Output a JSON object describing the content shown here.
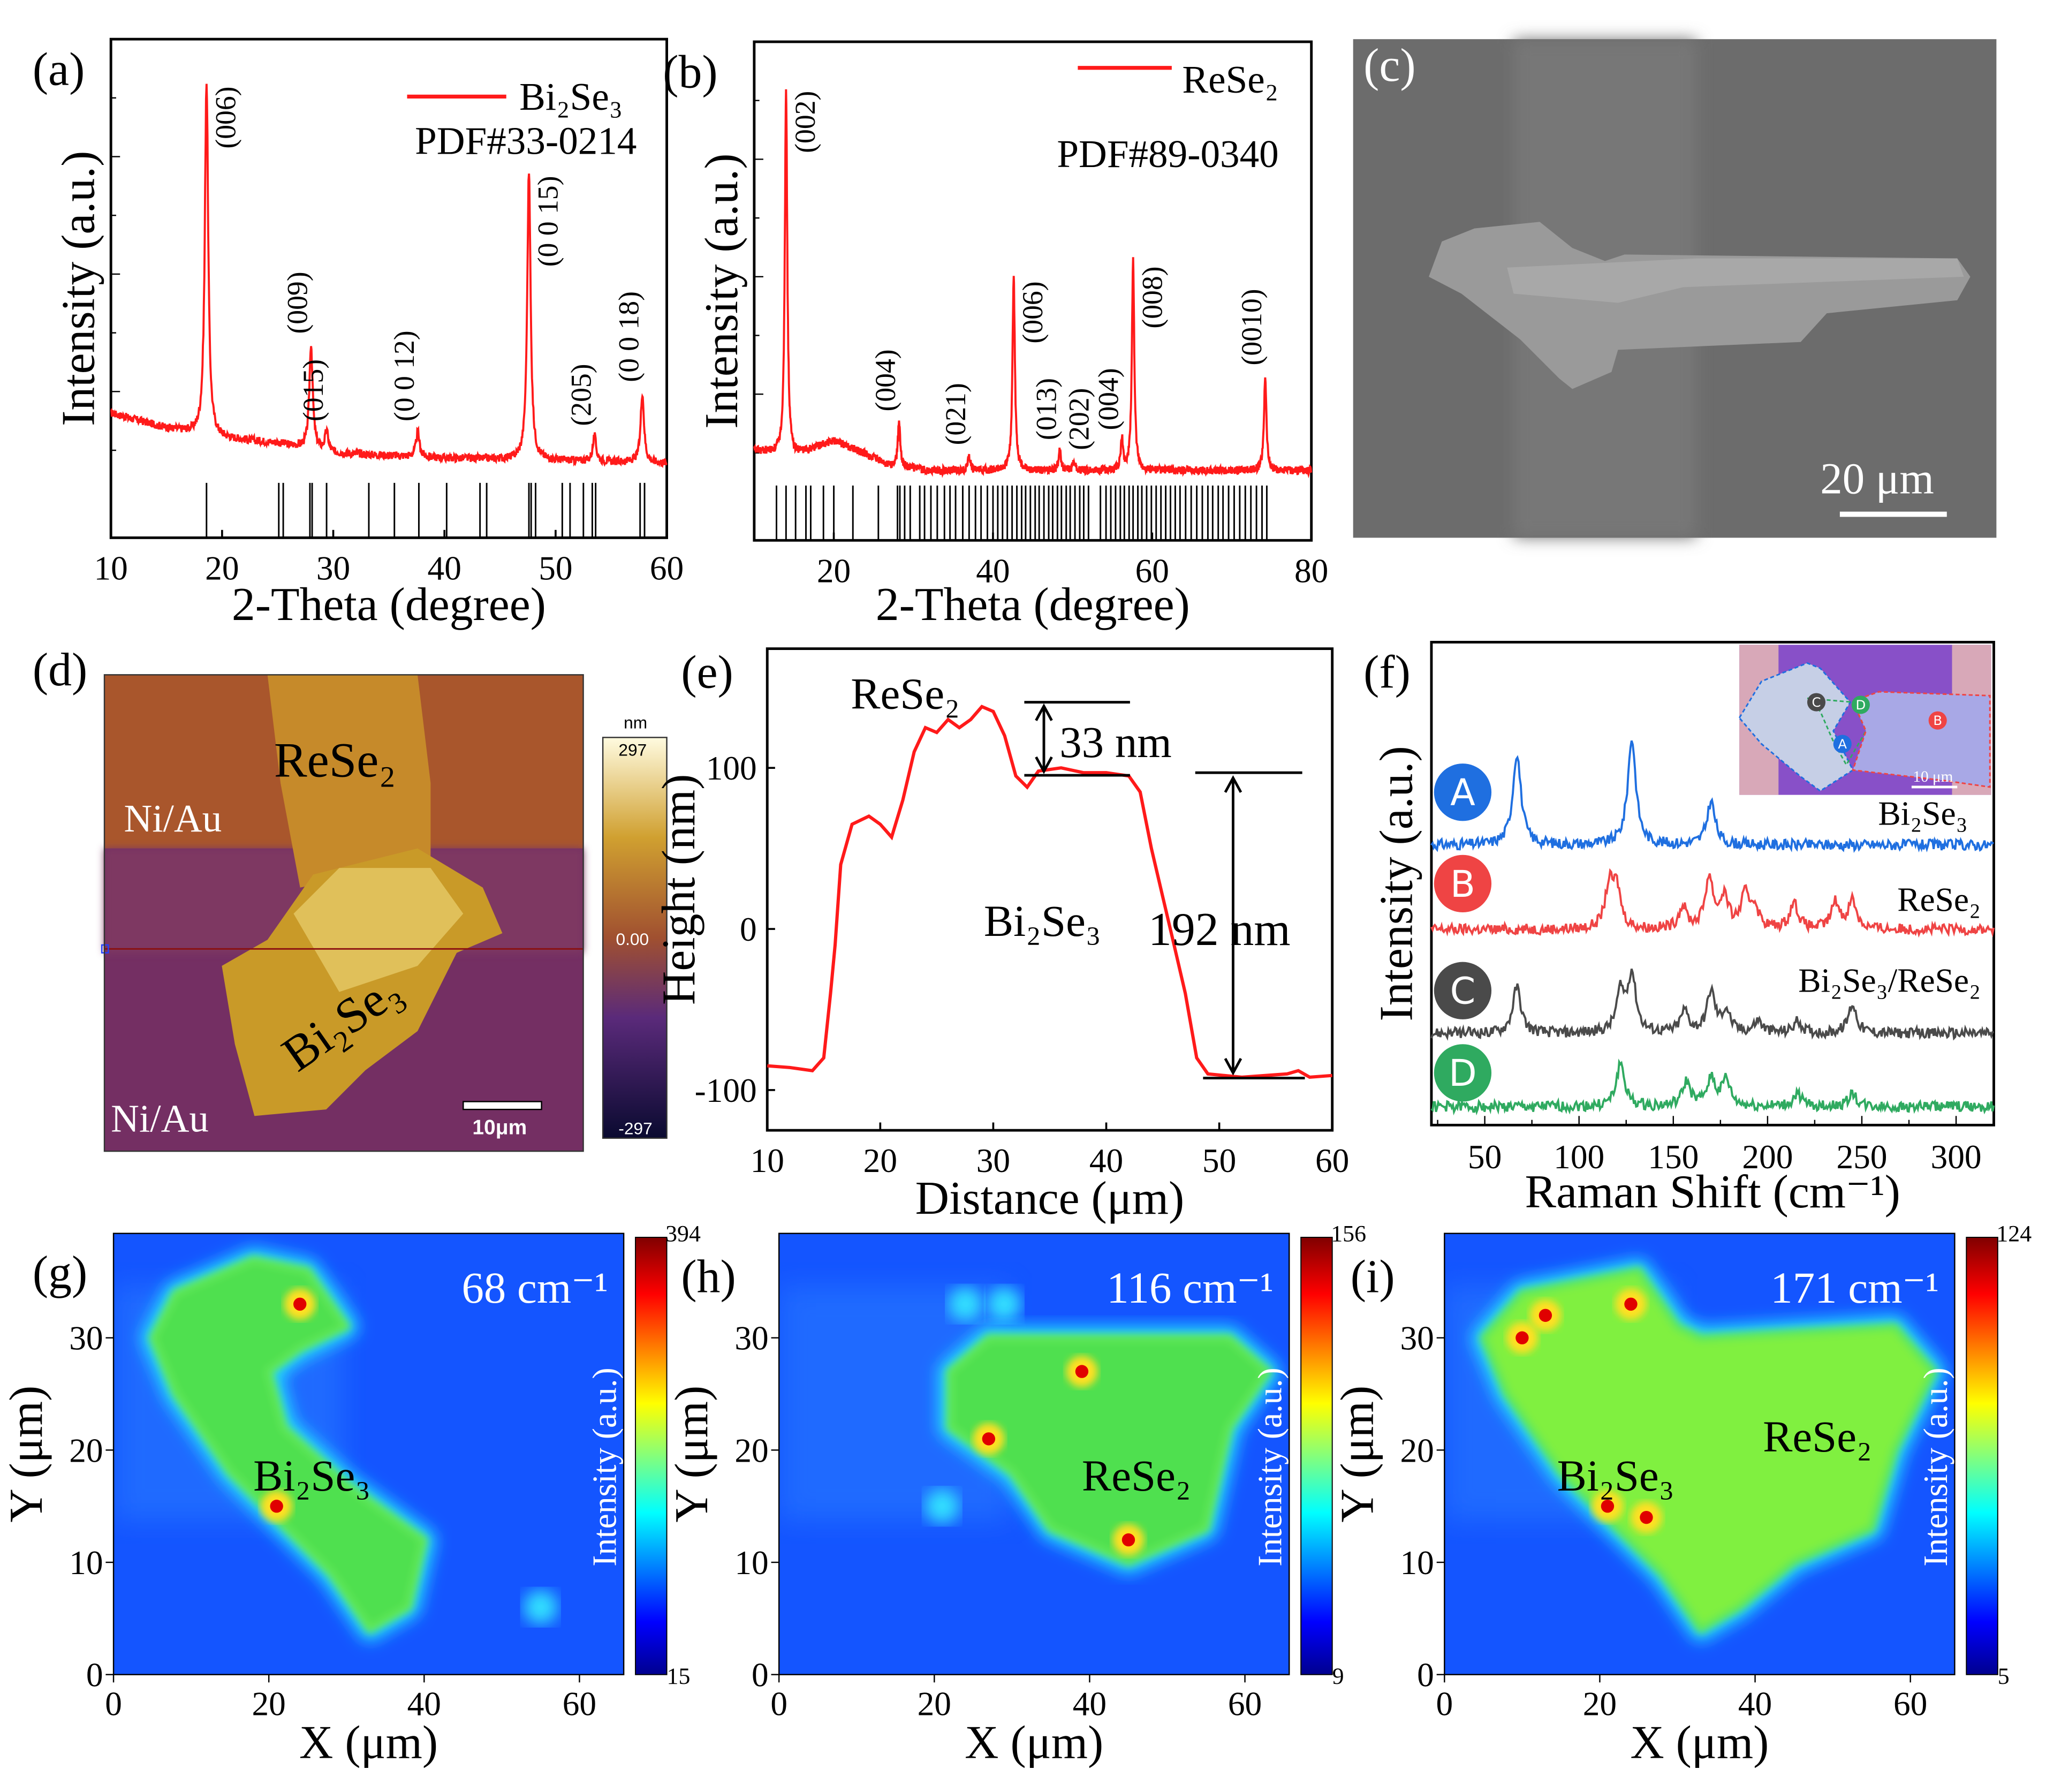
{
  "panel_labels": {
    "a": "(a)",
    "b": "(b)",
    "c": "(c)",
    "d": "(d)",
    "e": "(e)",
    "f": "(f)",
    "g": "(g)",
    "h": "(h)",
    "i": "(i)"
  },
  "colors": {
    "xrd": "#ff1a1a",
    "ref": "#000000",
    "raman_A": "#1f6fe0",
    "raman_B": "#ef4444",
    "raman_C": "#4a4a4a",
    "raman_D": "#2faa60",
    "height": "#ff1a1a"
  },
  "sem": {
    "scale_bar": "20 μm"
  },
  "afm": {
    "label_rese2": "ReSe₂",
    "label_niau_top": "Ni/Au",
    "label_niau_bottom": "Ni/Au",
    "label_bi2se3": "Bi₂Se₃",
    "scale_bar": "10μm",
    "colorbar": {
      "unit": "nm",
      "max": "297",
      "mid": "0.00",
      "min": "-297"
    }
  },
  "chart_data": [
    {
      "id": "a",
      "type": "line",
      "title": "",
      "legend": "Bi₂Se₃",
      "pdf": "PDF#33-0214",
      "xlabel": "2-Theta (degree)",
      "ylabel": "Intensity (a.u.)",
      "xlim": [
        10,
        60
      ],
      "ylim": [
        0,
        100
      ],
      "xticks": [
        10,
        20,
        30,
        40,
        50,
        60
      ],
      "baseline": [
        [
          10,
          25
        ],
        [
          15,
          22
        ],
        [
          20,
          20
        ],
        [
          25,
          19
        ],
        [
          30,
          17
        ],
        [
          40,
          16
        ],
        [
          60,
          15
        ]
      ],
      "peaks": [
        {
          "x": 18.6,
          "h": 71,
          "label": "(006)"
        },
        {
          "x": 28.0,
          "h": 21,
          "label": "(009)"
        },
        {
          "x": 29.4,
          "h": 4,
          "label": "(015)"
        },
        {
          "x": 37.6,
          "h": 5,
          "label": "(0 0 12)"
        },
        {
          "x": 47.6,
          "h": 58,
          "label": "(0 0 15)"
        },
        {
          "x": 53.5,
          "h": 5,
          "label": "(205)"
        },
        {
          "x": 57.8,
          "h": 14,
          "label": "(0 0 18)"
        }
      ],
      "reference_lines": [
        18.6,
        25.1,
        25.5,
        27.9,
        28.1,
        29.4,
        33.2,
        35.5,
        37.7,
        40.2,
        43.2,
        43.8,
        47.6,
        47.8,
        48.2,
        50.6,
        51.3,
        52.5,
        53.3,
        53.6,
        57.6,
        58.0
      ]
    },
    {
      "id": "b",
      "type": "line",
      "legend": "ReSe₂",
      "pdf": "PDF#89-0340",
      "xlabel": "2-Theta (degree)",
      "ylabel": "Intensity (a.u.)",
      "xlim": [
        10,
        80
      ],
      "ylim": [
        0,
        100
      ],
      "xticks": [
        20,
        40,
        60,
        80
      ],
      "baseline": [
        [
          10,
          18
        ],
        [
          15,
          17
        ],
        [
          20,
          20
        ],
        [
          23,
          18
        ],
        [
          27,
          15
        ],
        [
          32,
          14
        ],
        [
          80,
          14
        ]
      ],
      "peaks": [
        {
          "x": 14.0,
          "h": 74,
          "label": "(002)"
        },
        {
          "x": 28.2,
          "h": 9,
          "label": "(004)"
        },
        {
          "x": 37.0,
          "h": 3,
          "label": "(021)"
        },
        {
          "x": 42.6,
          "h": 39,
          "label": "(006)"
        },
        {
          "x": 48.4,
          "h": 4,
          "label": "(013)"
        },
        {
          "x": 50.2,
          "h": 2,
          "label": "(202)"
        },
        {
          "x": 56.2,
          "h": 6,
          "label": "(004)"
        },
        {
          "x": 57.6,
          "h": 42,
          "label": "(008)"
        },
        {
          "x": 74.2,
          "h": 19,
          "label": "(0010)"
        }
      ],
      "reference_lines": [
        12.8,
        14.0,
        15.2,
        16.5,
        17.1,
        18.7,
        20.0,
        22.4,
        25.6,
        28.0,
        28.3,
        28.9,
        29.6,
        30.8,
        31.4,
        32.2,
        33.0,
        33.9,
        34.6,
        35.3,
        36.2,
        37.0,
        37.8,
        38.5,
        39.3,
        40.0,
        40.6,
        41.2,
        41.8,
        42.4,
        43.0,
        43.6,
        44.1,
        44.7,
        45.3,
        45.8,
        46.4,
        47.0,
        47.5,
        48.1,
        48.6,
        49.2,
        49.7,
        50.3,
        50.9,
        51.4,
        52.0,
        53.5,
        54.2,
        54.8,
        55.4,
        56.0,
        56.5,
        57.1,
        57.6,
        58.2,
        58.7,
        59.3,
        59.9,
        60.5,
        61.1,
        61.7,
        62.3,
        62.9,
        63.5,
        64.2,
        64.9,
        65.6,
        66.3,
        67.0,
        67.6,
        68.3,
        68.9,
        69.6,
        70.3,
        71.0,
        71.7,
        72.4,
        73.1,
        73.8,
        74.4
      ]
    },
    {
      "id": "e",
      "type": "line",
      "xlabel": "Distance (μm)",
      "ylabel": "Height (nm)",
      "xlim": [
        10,
        60
      ],
      "ylim": [
        -125,
        174
      ],
      "xticks": [
        10,
        20,
        30,
        40,
        50,
        60
      ],
      "yticks": [
        -100,
        0,
        100
      ],
      "ytick_labels": [
        "-100",
        "0",
        "100"
      ],
      "labels": {
        "rese2": "ReSe₂",
        "bi2se3": "Bi₂Se₃",
        "step1": "33 nm",
        "step2": "192 nm"
      },
      "points": [
        [
          10,
          -85
        ],
        [
          12,
          -86
        ],
        [
          14,
          -88
        ],
        [
          15,
          -80
        ],
        [
          15.6,
          -40
        ],
        [
          16,
          -10
        ],
        [
          16.5,
          40
        ],
        [
          17.5,
          65
        ],
        [
          19,
          70
        ],
        [
          20,
          65
        ],
        [
          21,
          57
        ],
        [
          22,
          80
        ],
        [
          23,
          110
        ],
        [
          24,
          125
        ],
        [
          25,
          122
        ],
        [
          26,
          130
        ],
        [
          27,
          125
        ],
        [
          28,
          130
        ],
        [
          29,
          138
        ],
        [
          30,
          135
        ],
        [
          31,
          120
        ],
        [
          32,
          95
        ],
        [
          33,
          88
        ],
        [
          34,
          98
        ],
        [
          36,
          100
        ],
        [
          38,
          97
        ],
        [
          40,
          97
        ],
        [
          42,
          95
        ],
        [
          43,
          85
        ],
        [
          44,
          50
        ],
        [
          45,
          20
        ],
        [
          46,
          -10
        ],
        [
          47,
          -40
        ],
        [
          48,
          -80
        ],
        [
          49,
          -90
        ],
        [
          52,
          -92
        ],
        [
          56,
          -90
        ],
        [
          57,
          -88
        ],
        [
          58,
          -92
        ],
        [
          60,
          -91
        ]
      ]
    },
    {
      "id": "f",
      "type": "line",
      "xlabel": "Raman Shift (cm⁻¹)",
      "ylabel": "Intensity (a.u.)",
      "xlim": [
        21.7,
        320
      ],
      "ylim": [
        0,
        100
      ],
      "xticks": [
        50,
        100,
        150,
        200,
        250,
        300
      ],
      "inset_scale_bar": "10 μm",
      "series": [
        {
          "name": "A",
          "label": "Bi₂Se₃",
          "baseline": 58,
          "color": "#1f6fe0",
          "peaks": [
            [
              67,
              19
            ],
            [
              128,
              22
            ],
            [
              170,
              9
            ]
          ]
        },
        {
          "name": "B",
          "label": "ReSe₂",
          "baseline": 40.5,
          "color": "#ef4444",
          "peaks": [
            [
              116,
              8.5
            ],
            [
              120,
              8
            ],
            [
              155,
              4.5
            ],
            [
              169,
              10.5
            ],
            [
              177,
              6.5
            ],
            [
              188,
              6.5
            ],
            [
              193,
              4.5
            ],
            [
              214,
              5.5
            ],
            [
              236,
              5.5
            ],
            [
              245,
              6
            ]
          ]
        },
        {
          "name": "C",
          "label": "Bi₂Se₃/ReSe₂",
          "baseline": 19,
          "color": "#4a4a4a",
          "peaks": [
            [
              67,
              9.6
            ],
            [
              122,
              8
            ],
            [
              128,
              12
            ],
            [
              156,
              4.5
            ],
            [
              170,
              8.5
            ],
            [
              178,
              4.5
            ],
            [
              195,
              2.5
            ],
            [
              216,
              2.5
            ],
            [
              245,
              6
            ]
          ]
        },
        {
          "name": "D",
          "label": "",
          "baseline": 3.8,
          "color": "#2faa60",
          "peaks": [
            [
              122,
              9
            ],
            [
              157,
              5
            ],
            [
              170,
              6
            ],
            [
              178,
              5.5
            ],
            [
              216,
              2.7
            ],
            [
              245,
              2.7
            ]
          ]
        }
      ]
    },
    {
      "id": "g",
      "type": "heatmap",
      "title": "68 cm⁻¹",
      "label": "Bi₂Se₃",
      "xlabel": "X (μm)",
      "ylabel": "Y (μm)",
      "colorbar_label": "Intensity (a.u.)",
      "cmax": "394",
      "cmin": "15",
      "xlim": [
        0,
        65.7
      ],
      "ylim": [
        0,
        39.3
      ],
      "xticks": [
        0,
        20,
        40,
        60
      ],
      "yticks": [
        0,
        10,
        20,
        30
      ],
      "regions": [
        [
          [
            5,
            30
          ],
          [
            8,
            34
          ],
          [
            18,
            37
          ],
          [
            25,
            36
          ],
          [
            30,
            31
          ],
          [
            24,
            29
          ],
          [
            20,
            27
          ],
          [
            22,
            22
          ],
          [
            30,
            17
          ],
          [
            40,
            12
          ],
          [
            38,
            6
          ],
          [
            33,
            4
          ],
          [
            28,
            9
          ],
          [
            15,
            18
          ],
          [
            8,
            25
          ]
        ]
      ],
      "hotspots": [
        [
          24,
          33
        ],
        [
          21,
          15
        ]
      ],
      "faint_spots": [
        [
          55,
          6
        ]
      ]
    },
    {
      "id": "h",
      "type": "heatmap",
      "title": "116 cm⁻¹",
      "label": "ReSe₂",
      "xlabel": "X (μm)",
      "ylabel": "Y (μm)",
      "colorbar_label": "Intensity (a.u.)",
      "cmax": "156",
      "cmin": "9",
      "xlim": [
        0,
        65.7
      ],
      "ylim": [
        0,
        39.3
      ],
      "xticks": [
        0,
        20,
        40,
        60
      ],
      "yticks": [
        0,
        10,
        20,
        30
      ],
      "regions": [
        [
          [
            22,
            27
          ],
          [
            27,
            30
          ],
          [
            40,
            30
          ],
          [
            58,
            30
          ],
          [
            63,
            27
          ],
          [
            58,
            22
          ],
          [
            55,
            13
          ],
          [
            45,
            10
          ],
          [
            35,
            13
          ],
          [
            30,
            18
          ],
          [
            22,
            22
          ]
        ]
      ],
      "hotspots": [
        [
          27,
          21
        ],
        [
          45,
          12
        ],
        [
          39,
          27
        ]
      ],
      "faint_spots": [
        [
          24,
          33
        ],
        [
          29,
          33
        ],
        [
          21,
          15
        ]
      ]
    },
    {
      "id": "i",
      "type": "heatmap",
      "title": "171 cm⁻¹",
      "label": "Bi₂Se₃",
      "label2": "ReSe₂",
      "xlabel": "X (μm)",
      "ylabel": "Y (μm)",
      "colorbar_label": "Intensity (a.u.)",
      "cmax": "124",
      "cmin": "5",
      "xlim": [
        0,
        65.7
      ],
      "ylim": [
        0,
        39.3
      ],
      "xticks": [
        0,
        20,
        40,
        60
      ],
      "yticks": [
        0,
        10,
        20,
        30
      ],
      "regions": [
        [
          [
            5,
            30
          ],
          [
            10,
            34
          ],
          [
            25,
            36
          ],
          [
            30,
            31
          ],
          [
            33,
            30
          ],
          [
            58,
            31
          ],
          [
            63,
            27
          ],
          [
            58,
            20
          ],
          [
            55,
            13
          ],
          [
            45,
            10
          ],
          [
            38,
            6
          ],
          [
            33,
            4
          ],
          [
            28,
            9
          ],
          [
            15,
            18
          ],
          [
            8,
            25
          ]
        ]
      ],
      "hotspots": [
        [
          24,
          33
        ],
        [
          21,
          15
        ],
        [
          26,
          14
        ],
        [
          10,
          30
        ],
        [
          13,
          32
        ]
      ],
      "faint_spots": []
    }
  ]
}
